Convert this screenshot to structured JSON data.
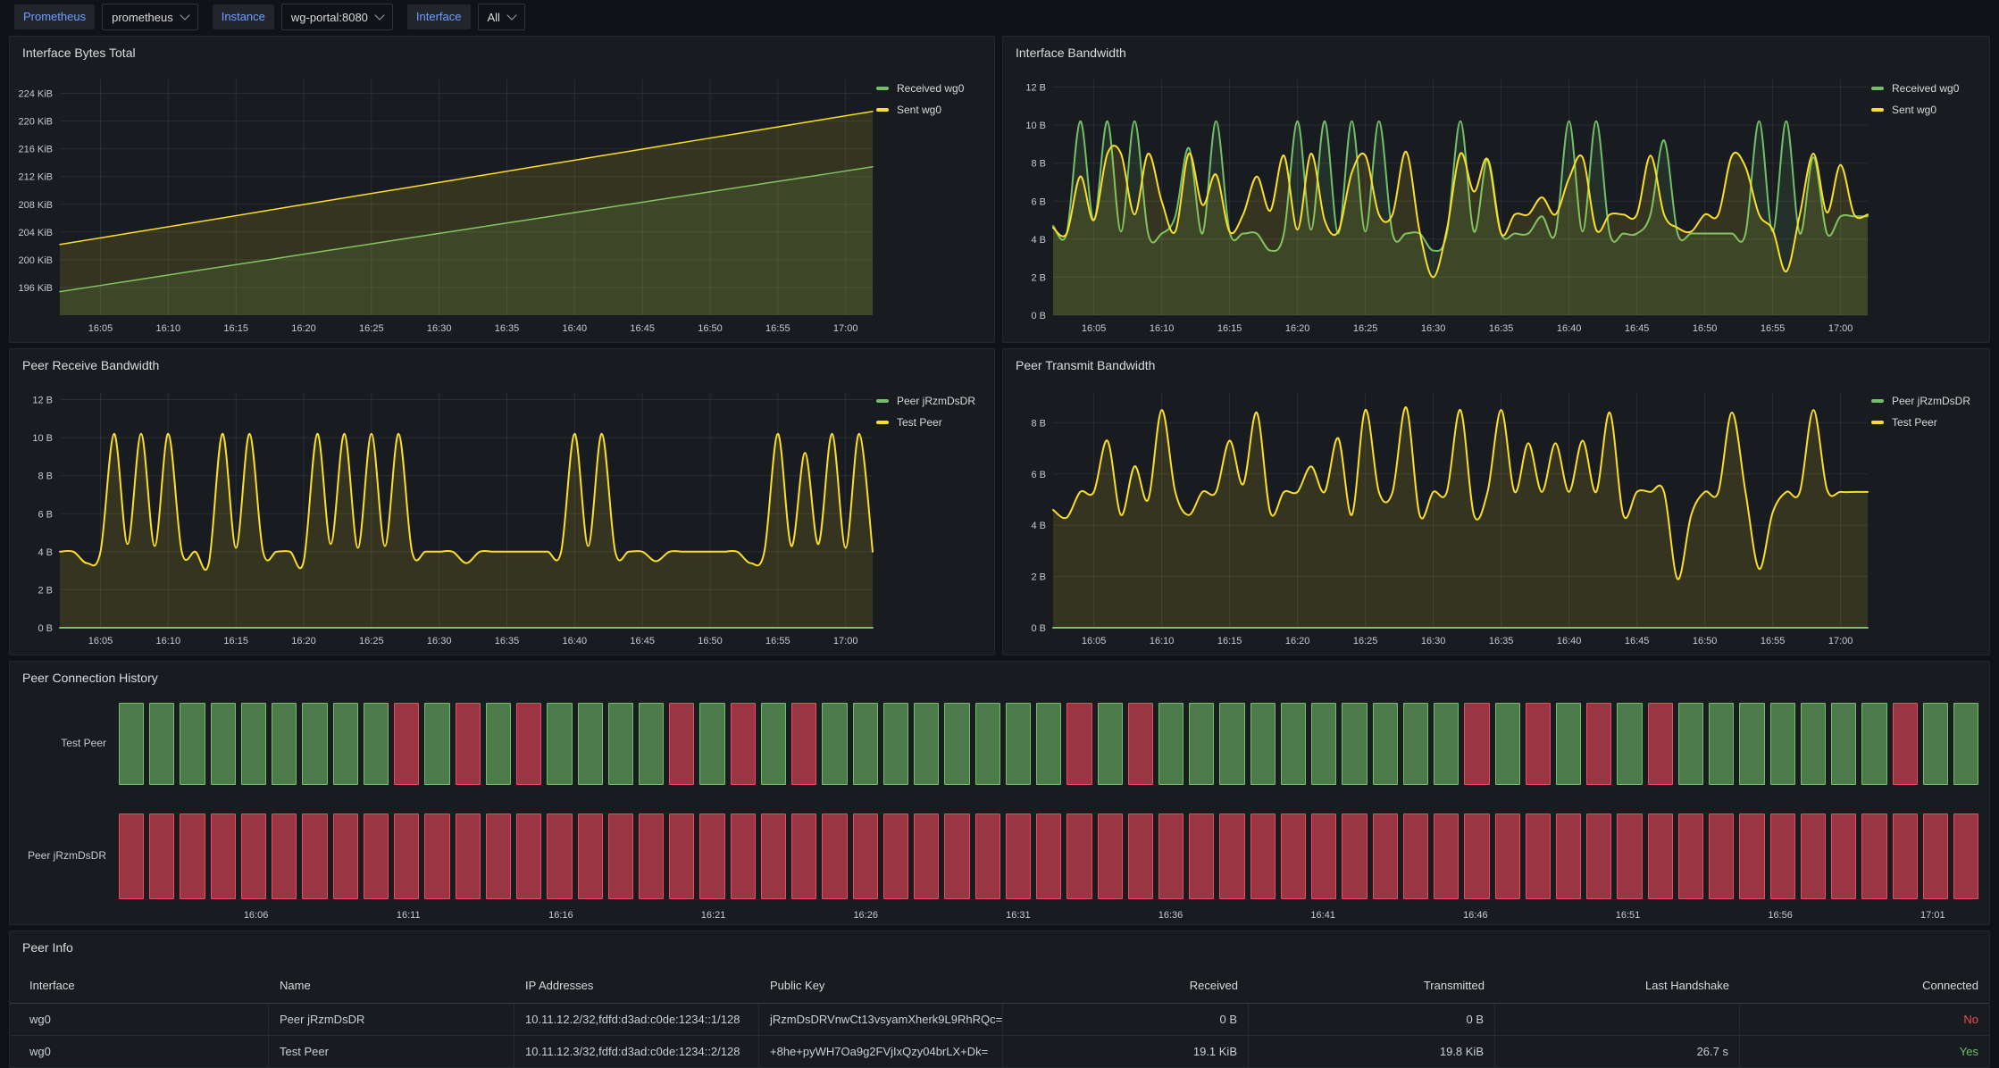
{
  "toolbar": {
    "variables": [
      {
        "label": "Prometheus",
        "value": "prometheus"
      },
      {
        "label": "Instance",
        "value": "wg-portal:8080"
      },
      {
        "label": "Interface",
        "value": "All"
      }
    ]
  },
  "colors": {
    "green": "#73bf69",
    "yellow": "#fade2a",
    "red": "#f2495c",
    "panel_bg": "#181b1f",
    "canvas_bg": "#111217",
    "grid": "rgba(204,204,220,0.10)",
    "axis_text": "#c8c9ce",
    "label_blue": "#6e9fff"
  },
  "chart_data": [
    {
      "id": "interface-bytes-total",
      "type": "line",
      "title": "Interface Bytes Total",
      "xlabel": "time",
      "x_range": [
        "16:02",
        "17:02"
      ],
      "xticks": [
        {
          "min": 3,
          "label": "16:05"
        },
        {
          "min": 8,
          "label": "16:10"
        },
        {
          "min": 13,
          "label": "16:15"
        },
        {
          "min": 18,
          "label": "16:20"
        },
        {
          "min": 23,
          "label": "16:25"
        },
        {
          "min": 28,
          "label": "16:30"
        },
        {
          "min": 33,
          "label": "16:35"
        },
        {
          "min": 38,
          "label": "16:40"
        },
        {
          "min": 43,
          "label": "16:45"
        },
        {
          "min": 48,
          "label": "16:50"
        },
        {
          "min": 53,
          "label": "16:55"
        },
        {
          "min": 58,
          "label": "17:00"
        }
      ],
      "ylim": [
        192,
        226
      ],
      "yticks": [
        {
          "v": 196,
          "label": "196 KiB"
        },
        {
          "v": 200,
          "label": "200 KiB"
        },
        {
          "v": 204,
          "label": "204 KiB"
        },
        {
          "v": 208,
          "label": "208 KiB"
        },
        {
          "v": 212,
          "label": "212 KiB"
        },
        {
          "v": 216,
          "label": "216 KiB"
        },
        {
          "v": 220,
          "label": "220 KiB"
        },
        {
          "v": 224,
          "label": "224 KiB"
        }
      ],
      "unit": "KiB",
      "lw": 1.5,
      "legend_position": "right",
      "series": [
        {
          "name": "Received wg0",
          "color": "green",
          "values": [
            195.4,
            196.9,
            198.4,
            199.9,
            201.4,
            202.9,
            204.4,
            205.9,
            207.4,
            208.9,
            210.4,
            211.9,
            213.4
          ]
        },
        {
          "name": "Sent wg0",
          "color": "yellow",
          "values": [
            202.2,
            203.8,
            205.4,
            207.0,
            208.6,
            210.2,
            211.8,
            213.4,
            215.0,
            216.6,
            218.2,
            219.8,
            221.4
          ]
        }
      ]
    },
    {
      "id": "interface-bandwidth",
      "type": "line",
      "title": "Interface Bandwidth",
      "x_range": [
        "16:02",
        "17:02"
      ],
      "xticks": [
        {
          "min": 3,
          "label": "16:05"
        },
        {
          "min": 8,
          "label": "16:10"
        },
        {
          "min": 13,
          "label": "16:15"
        },
        {
          "min": 18,
          "label": "16:20"
        },
        {
          "min": 23,
          "label": "16:25"
        },
        {
          "min": 28,
          "label": "16:30"
        },
        {
          "min": 33,
          "label": "16:35"
        },
        {
          "min": 38,
          "label": "16:40"
        },
        {
          "min": 43,
          "label": "16:45"
        },
        {
          "min": 48,
          "label": "16:50"
        },
        {
          "min": 53,
          "label": "16:55"
        },
        {
          "min": 58,
          "label": "17:00"
        }
      ],
      "ylim": [
        0,
        12.4
      ],
      "yticks": [
        {
          "v": 0,
          "label": "0 B"
        },
        {
          "v": 2,
          "label": "2 B"
        },
        {
          "v": 4,
          "label": "4 B"
        },
        {
          "v": 6,
          "label": "6 B"
        },
        {
          "v": 8,
          "label": "8 B"
        },
        {
          "v": 10,
          "label": "10 B"
        },
        {
          "v": 12,
          "label": "12 B"
        }
      ],
      "unit": "B",
      "lw": 2,
      "legend_position": "right",
      "series": [
        {
          "name": "Received wg0",
          "color": "green",
          "values": [
            4.7,
            4.3,
            10.2,
            5.0,
            10.2,
            4.4,
            10.2,
            4.3,
            4.3,
            5.2,
            8.8,
            4.3,
            10.2,
            4.4,
            4.3,
            4.3,
            3.4,
            4.3,
            10.2,
            4.5,
            10.2,
            4.3,
            10.2,
            4.4,
            10.2,
            4.3,
            4.3,
            4.3,
            3.4,
            4.3,
            10.2,
            4.4,
            8.2,
            4.3,
            4.3,
            4.3,
            5.2,
            4.3,
            10.2,
            4.4,
            10.2,
            4.3,
            4.3,
            4.3,
            5.3,
            9.2,
            4.3,
            4.3,
            4.3,
            4.3,
            4.3,
            4.3,
            10.2,
            4.4,
            10.2,
            4.3,
            8.3,
            4.3,
            5.2,
            5.2,
            5.2
          ]
        },
        {
          "name": "Sent wg0",
          "color": "yellow",
          "values": [
            4.6,
            4.3,
            7.3,
            5.0,
            8.5,
            8.5,
            5.3,
            8.5,
            6.0,
            4.4,
            8.5,
            5.8,
            7.4,
            4.4,
            5.3,
            7.3,
            5.5,
            8.4,
            4.5,
            8.5,
            5.0,
            4.4,
            7.5,
            8.4,
            5.3,
            5.3,
            8.6,
            4.4,
            2.0,
            4.5,
            8.5,
            6.5,
            8.2,
            4.3,
            5.3,
            5.3,
            6.2,
            5.3,
            7.2,
            8.3,
            4.5,
            5.3,
            5.3,
            5.3,
            8.4,
            5.3,
            4.6,
            4.4,
            5.3,
            5.3,
            8.4,
            7.8,
            5.3,
            4.5,
            2.3,
            5.3,
            8.5,
            5.4,
            7.9,
            5.3,
            5.3
          ]
        }
      ]
    },
    {
      "id": "peer-receive-bandwidth",
      "type": "line",
      "title": "Peer Receive Bandwidth",
      "x_range": [
        "16:02",
        "17:02"
      ],
      "xticks": [
        {
          "min": 3,
          "label": "16:05"
        },
        {
          "min": 8,
          "label": "16:10"
        },
        {
          "min": 13,
          "label": "16:15"
        },
        {
          "min": 18,
          "label": "16:20"
        },
        {
          "min": 23,
          "label": "16:25"
        },
        {
          "min": 28,
          "label": "16:30"
        },
        {
          "min": 33,
          "label": "16:35"
        },
        {
          "min": 38,
          "label": "16:40"
        },
        {
          "min": 43,
          "label": "16:45"
        },
        {
          "min": 48,
          "label": "16:50"
        },
        {
          "min": 53,
          "label": "16:55"
        },
        {
          "min": 58,
          "label": "17:00"
        }
      ],
      "ylim": [
        0,
        12.4
      ],
      "yticks": [
        {
          "v": 0,
          "label": "0 B"
        },
        {
          "v": 2,
          "label": "2 B"
        },
        {
          "v": 4,
          "label": "4 B"
        },
        {
          "v": 6,
          "label": "6 B"
        },
        {
          "v": 8,
          "label": "8 B"
        },
        {
          "v": 10,
          "label": "10 B"
        },
        {
          "v": 12,
          "label": "12 B"
        }
      ],
      "unit": "B",
      "lw": 2,
      "legend_position": "right",
      "series": [
        {
          "name": "Peer jRzmDsDR",
          "color": "green",
          "values": [
            0,
            0,
            0,
            0,
            0,
            0,
            0,
            0,
            0,
            0,
            0,
            0,
            0,
            0,
            0,
            0,
            0,
            0,
            0,
            0,
            0,
            0,
            0,
            0,
            0,
            0,
            0,
            0,
            0,
            0,
            0,
            0,
            0,
            0,
            0,
            0,
            0,
            0,
            0,
            0,
            0,
            0,
            0,
            0,
            0,
            0,
            0,
            0,
            0,
            0,
            0,
            0,
            0,
            0,
            0,
            0,
            0,
            0,
            0,
            0,
            0
          ]
        },
        {
          "name": "Test Peer",
          "color": "yellow",
          "values": [
            4,
            4,
            3.4,
            4,
            10.2,
            4.4,
            10.2,
            4.3,
            10.2,
            4,
            4,
            3.4,
            10.2,
            4.2,
            10.2,
            4,
            4,
            4,
            3.5,
            10.2,
            4.4,
            10.2,
            4.2,
            10.2,
            4.3,
            10.2,
            4,
            4,
            4,
            4,
            3.4,
            4,
            4,
            4,
            4,
            4,
            4,
            4,
            10.2,
            4.3,
            10.2,
            4,
            4,
            4,
            3.5,
            4,
            4,
            4,
            4,
            4,
            4,
            3.4,
            4,
            10.2,
            4.3,
            9.2,
            4.4,
            10.2,
            4.2,
            10.2,
            4
          ]
        }
      ]
    },
    {
      "id": "peer-transmit-bandwidth",
      "type": "line",
      "title": "Peer Transmit Bandwidth",
      "x_range": [
        "16:02",
        "17:02"
      ],
      "xticks": [
        {
          "min": 3,
          "label": "16:05"
        },
        {
          "min": 8,
          "label": "16:10"
        },
        {
          "min": 13,
          "label": "16:15"
        },
        {
          "min": 18,
          "label": "16:20"
        },
        {
          "min": 23,
          "label": "16:25"
        },
        {
          "min": 28,
          "label": "16:30"
        },
        {
          "min": 33,
          "label": "16:35"
        },
        {
          "min": 38,
          "label": "16:40"
        },
        {
          "min": 43,
          "label": "16:45"
        },
        {
          "min": 48,
          "label": "16:50"
        },
        {
          "min": 53,
          "label": "16:55"
        },
        {
          "min": 58,
          "label": "17:00"
        }
      ],
      "ylim": [
        0,
        9.2
      ],
      "yticks": [
        {
          "v": 0,
          "label": "0 B"
        },
        {
          "v": 2,
          "label": "2 B"
        },
        {
          "v": 4,
          "label": "4 B"
        },
        {
          "v": 6,
          "label": "6 B"
        },
        {
          "v": 8,
          "label": "8 B"
        }
      ],
      "unit": "B",
      "lw": 2,
      "legend_position": "right",
      "series": [
        {
          "name": "Peer jRzmDsDR",
          "color": "green",
          "values": [
            0,
            0,
            0,
            0,
            0,
            0,
            0,
            0,
            0,
            0,
            0,
            0,
            0,
            0,
            0,
            0,
            0,
            0,
            0,
            0,
            0,
            0,
            0,
            0,
            0,
            0,
            0,
            0,
            0,
            0,
            0,
            0,
            0,
            0,
            0,
            0,
            0,
            0,
            0,
            0,
            0,
            0,
            0,
            0,
            0,
            0,
            0,
            0,
            0,
            0,
            0,
            0,
            0,
            0,
            0,
            0,
            0,
            0,
            0,
            0,
            0
          ]
        },
        {
          "name": "Test Peer",
          "color": "yellow",
          "values": [
            4.6,
            4.3,
            5.3,
            5.3,
            7.3,
            4.4,
            6.3,
            5.0,
            8.5,
            5.3,
            4.4,
            5.3,
            5.3,
            7.3,
            5.6,
            8.4,
            4.5,
            5.3,
            5.3,
            6.3,
            5.3,
            7.4,
            4.4,
            8.5,
            5.3,
            5.3,
            8.6,
            4.4,
            5.3,
            5.3,
            8.5,
            4.4,
            5.3,
            8.5,
            5.3,
            7.2,
            5.3,
            7.2,
            5.3,
            7.3,
            5.3,
            8.4,
            4.4,
            5.3,
            5.3,
            5.3,
            1.9,
            4.4,
            5.3,
            5.3,
            8.4,
            5.3,
            2.3,
            4.5,
            5.3,
            5.3,
            8.5,
            5.4,
            5.3,
            5.3,
            5.3
          ]
        }
      ]
    },
    {
      "id": "peer-connection-history",
      "type": "status-history",
      "title": "Peer Connection History",
      "legend": {
        "connected_color": "green",
        "disconnected_color": "red"
      },
      "rows": [
        {
          "name": "Test Peer",
          "states": [
            1,
            1,
            1,
            1,
            1,
            1,
            1,
            1,
            1,
            0,
            1,
            0,
            1,
            0,
            1,
            1,
            1,
            1,
            0,
            1,
            0,
            1,
            0,
            1,
            1,
            1,
            1,
            1,
            1,
            1,
            1,
            0,
            1,
            0,
            1,
            1,
            1,
            1,
            1,
            1,
            1,
            1,
            1,
            1,
            0,
            1,
            0,
            1,
            0,
            1,
            0,
            1,
            1,
            1,
            1,
            1,
            1,
            1,
            0,
            1,
            1
          ]
        },
        {
          "name": "Peer jRzmDsDR",
          "states": [
            0,
            0,
            0,
            0,
            0,
            0,
            0,
            0,
            0,
            0,
            0,
            0,
            0,
            0,
            0,
            0,
            0,
            0,
            0,
            0,
            0,
            0,
            0,
            0,
            0,
            0,
            0,
            0,
            0,
            0,
            0,
            0,
            0,
            0,
            0,
            0,
            0,
            0,
            0,
            0,
            0,
            0,
            0,
            0,
            0,
            0,
            0,
            0,
            0,
            0,
            0,
            0,
            0,
            0,
            0,
            0,
            0,
            0,
            0,
            0,
            0
          ]
        }
      ],
      "xticks": [
        {
          "idx": 4,
          "label": "16:06"
        },
        {
          "idx": 9,
          "label": "16:11"
        },
        {
          "idx": 14,
          "label": "16:16"
        },
        {
          "idx": 19,
          "label": "16:21"
        },
        {
          "idx": 24,
          "label": "16:26"
        },
        {
          "idx": 29,
          "label": "16:31"
        },
        {
          "idx": 34,
          "label": "16:36"
        },
        {
          "idx": 39,
          "label": "16:41"
        },
        {
          "idx": 44,
          "label": "16:46"
        },
        {
          "idx": 49,
          "label": "16:51"
        },
        {
          "idx": 54,
          "label": "16:56"
        },
        {
          "idx": 59,
          "label": "17:01"
        }
      ]
    }
  ],
  "table": {
    "title": "Peer Info",
    "columns": [
      {
        "label": "Interface",
        "align": "left"
      },
      {
        "label": "Name",
        "align": "left"
      },
      {
        "label": "IP Addresses",
        "align": "left"
      },
      {
        "label": "Public Key",
        "align": "left"
      },
      {
        "label": "Received",
        "align": "right"
      },
      {
        "label": "Transmitted",
        "align": "right"
      },
      {
        "label": "Last Handshake",
        "align": "right"
      },
      {
        "label": "Connected",
        "align": "right"
      }
    ],
    "rows": [
      [
        "wg0",
        "Peer jRzmDsDR",
        "10.11.12.2/32,fdfd:d3ad:c0de:1234::1/128",
        "jRzmDsDRVnwCt13vsyamXherk9L9RhRQc=",
        "0 B",
        "0 B",
        "",
        "No"
      ],
      [
        "wg0",
        "Test Peer",
        "10.11.12.3/32,fdfd:d3ad:c0de:1234::2/128",
        "+8he+pyWH7Oa9g2FVjIxQzy04brLX+Dk=",
        "19.1 KiB",
        "19.8 KiB",
        "26.7 s",
        "Yes"
      ]
    ],
    "value_colors": {
      "No": "#f2495c",
      "Yes": "#73bf69"
    }
  }
}
